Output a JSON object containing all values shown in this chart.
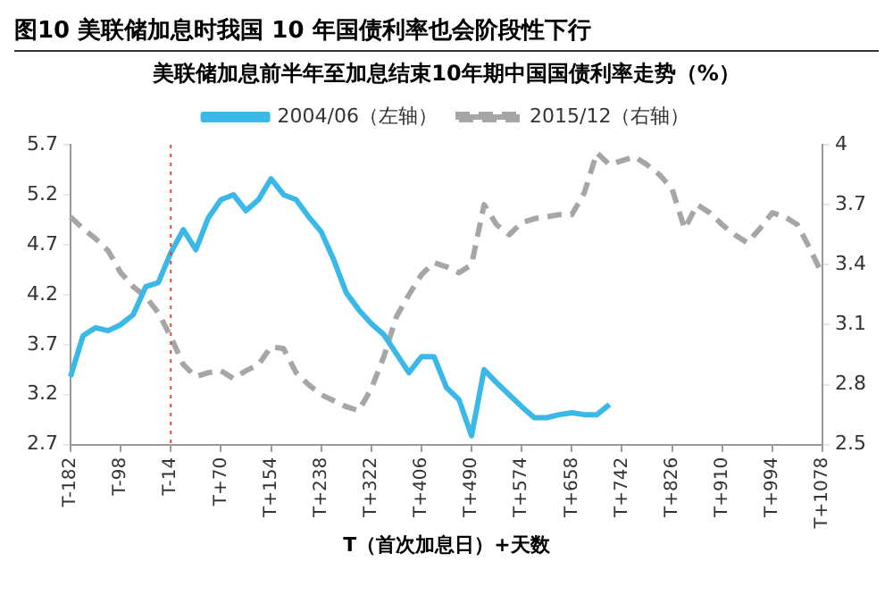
{
  "chart_data": {
    "type": "line",
    "title": "图10 美联储加息时我国 10 年国债利率也会阶段性下行",
    "subtitle": "美联储加息前半年至加息结束10年期中国国债利率走势（%）",
    "xlabel": "T（首次加息日）+天数",
    "categories": [
      "T-182",
      null,
      null,
      null,
      "T-98",
      null,
      null,
      null,
      "T-14",
      null,
      null,
      null,
      "T+70",
      null,
      null,
      null,
      "T+154",
      null,
      null,
      null,
      "T+238",
      null,
      null,
      null,
      "T+322",
      null,
      null,
      null,
      "T+406",
      null,
      null,
      null,
      "T+490",
      null,
      null,
      null,
      "T+574",
      null,
      null,
      null,
      "T+658",
      null,
      null,
      null,
      "T+742",
      null,
      null,
      null,
      "T+826",
      null,
      null,
      null,
      "T+910",
      null,
      null,
      null,
      "T+994",
      null,
      null,
      null,
      "T+1078"
    ],
    "ylim": [
      2.7,
      5.7
    ],
    "yticks": [
      2.7,
      3.2,
      3.7,
      4.2,
      4.7,
      5.2,
      5.7
    ],
    "y2lim": [
      2.5,
      4.0
    ],
    "y2ticks": [
      2.5,
      2.8,
      3.1,
      3.4,
      3.7,
      4.0
    ],
    "grid": false,
    "legend": "top",
    "marker": "none",
    "ref_lines": [
      {
        "axis": "x",
        "value": "T-14",
        "color": "#e0473c",
        "line_style": "dotted"
      }
    ],
    "series": [
      {
        "name": "2004/06（左轴）",
        "color": "#3ab8e8",
        "line_style": "solid",
        "values": [
          3.38,
          3.79,
          3.87,
          3.84,
          3.9,
          4.0,
          4.28,
          4.32,
          4.62,
          4.85,
          4.65,
          4.97,
          5.15,
          5.2,
          5.04,
          5.15,
          5.36,
          5.2,
          5.15,
          4.98,
          4.83,
          4.55,
          4.22,
          4.05,
          3.91,
          3.8,
          3.61,
          3.42,
          3.58,
          3.58,
          3.27,
          3.15,
          2.79,
          3.45,
          3.32,
          3.2,
          3.08,
          2.97,
          2.97,
          3.0,
          3.02,
          3.0,
          3.0,
          3.1,
          null,
          null,
          null,
          null,
          null,
          null,
          null,
          null,
          null,
          null,
          null,
          null,
          null,
          null,
          null,
          null,
          null
        ]
      },
      {
        "name": "2015/12（右轴）",
        "color": "#a6a6a6",
        "line_style": "dashed",
        "axis": "y2",
        "values": [
          3.64,
          3.58,
          3.53,
          3.47,
          3.36,
          3.29,
          3.24,
          3.16,
          3.04,
          2.9,
          2.84,
          2.86,
          2.87,
          2.83,
          2.87,
          2.9,
          2.99,
          2.98,
          2.86,
          2.8,
          2.75,
          2.72,
          2.69,
          2.67,
          2.78,
          2.94,
          3.14,
          3.25,
          3.35,
          3.41,
          3.39,
          3.36,
          3.4,
          3.7,
          3.6,
          3.55,
          3.61,
          3.63,
          3.64,
          3.65,
          3.65,
          3.76,
          3.96,
          3.9,
          3.92,
          3.94,
          3.9,
          3.85,
          3.78,
          3.58,
          3.7,
          3.66,
          3.6,
          3.55,
          3.51,
          3.58,
          3.66,
          3.64,
          3.6,
          3.48,
          3.35
        ]
      }
    ]
  }
}
